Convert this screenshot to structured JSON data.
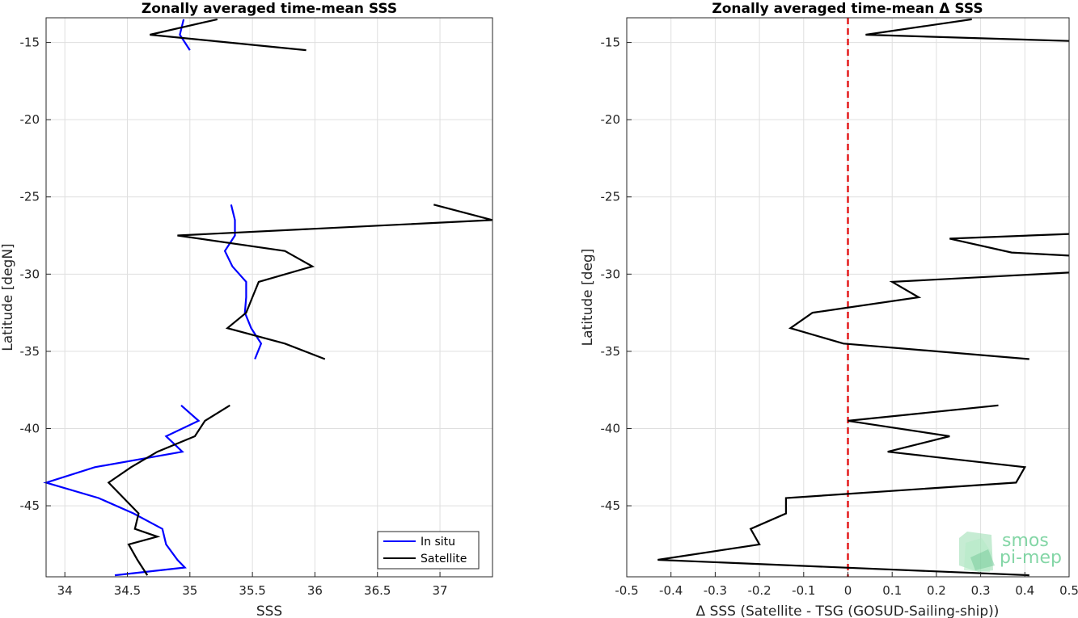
{
  "chart_data": [
    {
      "type": "line",
      "title": "Zonally averaged time-mean SSS",
      "xlabel": "SSS",
      "ylabel": "Latitude [degN]",
      "xlim": [
        33.85,
        37.42
      ],
      "ylim": [
        -49.6,
        -13.4
      ],
      "xticks": [
        34,
        34.5,
        35,
        35.5,
        36,
        36.5,
        37
      ],
      "xtick_labels": [
        "34",
        "34.5",
        "35",
        "35.5",
        "36",
        "36.5",
        "37"
      ],
      "yticks": [
        -15,
        -20,
        -25,
        -30,
        -35,
        -40,
        -45
      ],
      "ytick_labels": [
        "-15",
        "-20",
        "-25",
        "-30",
        "-35",
        "-40",
        "-45"
      ],
      "grid": true,
      "legend_position": "bottom-right",
      "series": [
        {
          "name": "In situ",
          "color": "#0000ff",
          "segments": [
            [
              [
                34.95,
                -13.5
              ],
              [
                34.92,
                -14.5
              ],
              [
                35.0,
                -15.5
              ]
            ],
            [
              [
                35.33,
                -25.5
              ],
              [
                35.36,
                -26.5
              ],
              [
                35.36,
                -27.5
              ],
              [
                35.28,
                -28.5
              ],
              [
                35.34,
                -29.5
              ],
              [
                35.45,
                -30.5
              ],
              [
                35.45,
                -31.5
              ],
              [
                35.44,
                -32.5
              ],
              [
                35.49,
                -33.5
              ],
              [
                35.57,
                -34.5
              ],
              [
                35.52,
                -35.5
              ]
            ],
            [
              [
                34.93,
                -38.5
              ],
              [
                35.07,
                -39.5
              ],
              [
                34.81,
                -40.5
              ],
              [
                34.94,
                -41.5
              ],
              [
                34.24,
                -42.5
              ],
              [
                33.85,
                -43.5
              ],
              [
                34.27,
                -44.5
              ],
              [
                34.55,
                -45.5
              ],
              [
                34.78,
                -46.5
              ],
              [
                34.81,
                -47.5
              ],
              [
                34.9,
                -48.5
              ],
              [
                34.96,
                -49.0
              ],
              [
                34.4,
                -49.5
              ]
            ]
          ]
        },
        {
          "name": "Satellite",
          "color": "#000000",
          "segments": [
            [
              [
                35.22,
                -13.5
              ],
              [
                34.68,
                -14.5
              ],
              [
                35.93,
                -15.5
              ]
            ],
            [
              [
                36.95,
                -25.5
              ],
              [
                37.42,
                -26.5
              ],
              [
                34.9,
                -27.5
              ],
              [
                35.76,
                -28.5
              ],
              [
                35.98,
                -29.5
              ],
              [
                35.55,
                -30.5
              ],
              [
                35.5,
                -31.5
              ],
              [
                35.45,
                -32.5
              ],
              [
                35.3,
                -33.5
              ],
              [
                35.76,
                -34.5
              ],
              [
                36.08,
                -35.5
              ]
            ],
            [
              [
                35.32,
                -38.5
              ],
              [
                35.12,
                -39.5
              ],
              [
                35.04,
                -40.5
              ],
              [
                34.74,
                -41.5
              ],
              [
                34.53,
                -42.5
              ],
              [
                34.35,
                -43.5
              ],
              [
                34.47,
                -44.5
              ],
              [
                34.59,
                -45.5
              ],
              [
                34.56,
                -46.5
              ],
              [
                34.74,
                -47.0
              ],
              [
                34.51,
                -47.5
              ],
              [
                34.58,
                -48.5
              ],
              [
                34.66,
                -49.5
              ]
            ]
          ]
        }
      ]
    },
    {
      "type": "line",
      "title": "Zonally averaged time-mean Δ SSS",
      "xlabel": "Δ SSS (Satellite - TSG (GOSUD-Sailing-ship))",
      "ylabel": "Latitude [deg]",
      "xlim": [
        -0.5,
        0.5
      ],
      "ylim": [
        -49.6,
        -13.4
      ],
      "xticks": [
        -0.5,
        -0.4,
        -0.3,
        -0.2,
        -0.1,
        0,
        0.1,
        0.2,
        0.3,
        0.4,
        0.5
      ],
      "xtick_labels": [
        "-0.5",
        "-0.4",
        "-0.3",
        "-0.2",
        "-0.1",
        "0",
        "0.1",
        "0.2",
        "0.3",
        "0.4",
        "0.5"
      ],
      "yticks": [
        -15,
        -20,
        -25,
        -30,
        -35,
        -40,
        -45
      ],
      "ytick_labels": [
        "-15",
        "-20",
        "-25",
        "-30",
        "-35",
        "-40",
        "-45"
      ],
      "grid": true,
      "reference_line": {
        "x": 0,
        "color": "#e41a1c",
        "style": "dashed"
      },
      "series": [
        {
          "color": "#000000",
          "segments": [
            [
              [
                0.28,
                -13.5
              ],
              [
                0.04,
                -14.5
              ],
              [
                0.5,
                -14.9
              ]
            ],
            [
              [
                0.5,
                -27.4
              ],
              [
                0.23,
                -27.7
              ],
              [
                0.37,
                -28.6
              ],
              [
                0.5,
                -28.8
              ]
            ],
            [
              [
                0.5,
                -29.9
              ],
              [
                0.1,
                -30.5
              ],
              [
                0.16,
                -31.5
              ],
              [
                -0.08,
                -32.5
              ],
              [
                -0.13,
                -33.5
              ],
              [
                -0.01,
                -34.5
              ],
              [
                0.41,
                -35.5
              ]
            ],
            [
              [
                0.34,
                -38.5
              ],
              [
                0.0,
                -39.5
              ],
              [
                0.23,
                -40.5
              ],
              [
                0.09,
                -41.5
              ],
              [
                0.4,
                -42.5
              ],
              [
                0.38,
                -43.5
              ],
              [
                -0.14,
                -44.5
              ],
              [
                -0.14,
                -45.5
              ],
              [
                -0.22,
                -46.5
              ],
              [
                -0.2,
                -47.5
              ],
              [
                -0.43,
                -48.5
              ],
              [
                0.41,
                -49.5
              ]
            ]
          ]
        }
      ]
    }
  ],
  "legend": {
    "in_situ": "In situ",
    "satellite": "Satellite"
  },
  "logo": {
    "line1": "smos",
    "line2": "pi-mep",
    "color": "#6fcf97"
  }
}
